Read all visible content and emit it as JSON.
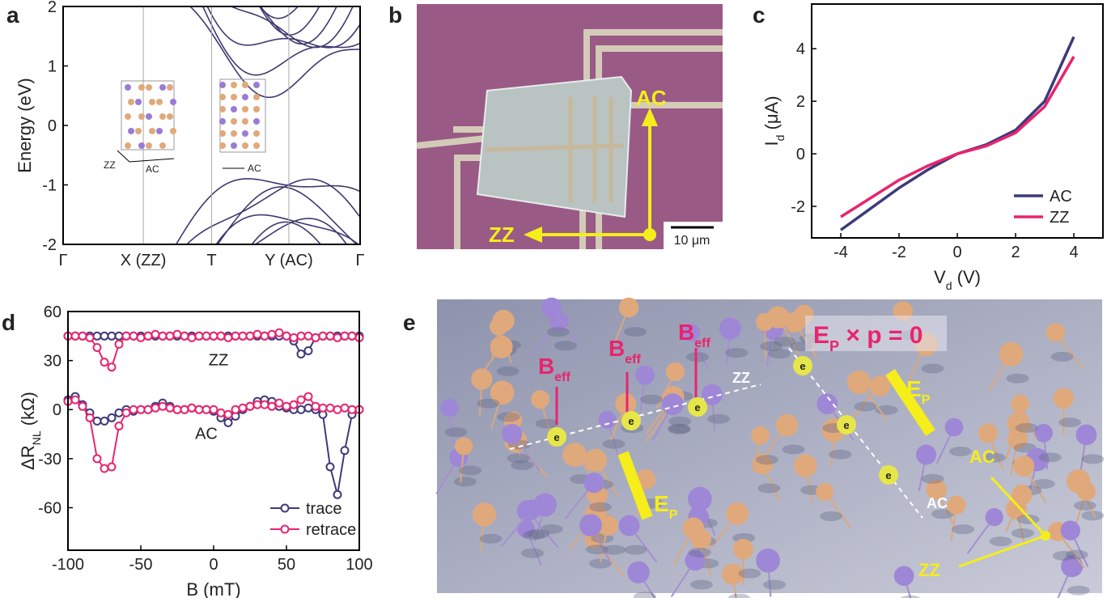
{
  "panel_labels": [
    "a",
    "b",
    "c",
    "d",
    "e"
  ],
  "chart_data": [
    {
      "type": "band",
      "ylabel": "Energy (eV)",
      "ylim": [
        -2,
        2
      ],
      "yticks": [
        -2,
        -1,
        0,
        1,
        2
      ],
      "categories": [
        "Γ",
        "X (ZZ)",
        "T",
        "Y (AC)",
        "Γ"
      ],
      "inset_labels": [
        "ZZ",
        "AC",
        "AC"
      ],
      "color": "#3d3a6e"
    },
    {
      "type": "line",
      "xlabel": {
        "text": "V",
        "sub": "d",
        "after": " (V)"
      },
      "ylabel": {
        "text": "I",
        "sub": "d",
        "after": " (μA)"
      },
      "xlim": [
        -5,
        5
      ],
      "xticks": [
        -4,
        -2,
        0,
        2,
        4
      ],
      "ylim": [
        -3.2,
        5.7
      ],
      "yticks": [
        -2,
        0,
        2,
        4
      ],
      "legend": "bottom-right",
      "markers": false,
      "x": [
        -4,
        -3,
        -2,
        -1,
        0,
        1,
        2,
        3,
        4
      ],
      "series": [
        {
          "name": "AC",
          "color": "#3d3a7a",
          "values": [
            -2.9,
            -2.1,
            -1.3,
            -0.6,
            0,
            0.35,
            0.9,
            2.0,
            4.45
          ]
        },
        {
          "name": "ZZ",
          "color": "#e8246e",
          "values": [
            -2.4,
            -1.7,
            -1.0,
            -0.45,
            0,
            0.3,
            0.8,
            1.8,
            3.7
          ]
        }
      ]
    },
    {
      "type": "line",
      "xlabel": {
        "text": "B (mT)",
        "sub": "",
        "after": ""
      },
      "ylabel": {
        "text": "ΔR",
        "sub": "NL",
        "after": " (kΩ)"
      },
      "xlim": [
        -100,
        100
      ],
      "xticks": [
        -100,
        -50,
        0,
        50,
        100
      ],
      "ylim": [
        -86,
        60
      ],
      "yticks": [
        -60,
        -30,
        0,
        30,
        60
      ],
      "legend": "bottom-right",
      "markers": true,
      "annotations": [
        "ZZ",
        "AC"
      ],
      "x": [
        -100,
        -95,
        -90,
        -85,
        -80,
        -75,
        -70,
        -65,
        -60,
        -55,
        -50,
        -45,
        -40,
        -35,
        -30,
        -25,
        -20,
        -15,
        -10,
        -5,
        0,
        5,
        10,
        15,
        20,
        25,
        30,
        35,
        40,
        45,
        50,
        55,
        60,
        65,
        70,
        75,
        80,
        85,
        90,
        95,
        100
      ],
      "series": [
        {
          "name": "trace",
          "color": "#3d3a7a",
          "branches": [
            [
              45,
              45,
              45,
              45,
              45,
              45,
              45,
              45,
              45,
              45,
              45,
              45,
              45,
              45,
              45,
              45,
              45,
              45,
              45,
              45,
              45,
              45,
              45,
              45,
              45,
              45,
              45,
              45,
              45,
              45,
              45,
              42,
              34,
              36,
              44,
              45,
              45,
              45,
              45,
              45,
              45
            ],
            [
              6,
              8,
              3,
              -2,
              -7,
              -7,
              -5,
              -2,
              0,
              -1,
              0,
              0,
              2,
              4,
              2,
              0,
              0,
              1,
              0,
              0,
              -1,
              -5,
              -8,
              -4,
              0,
              2,
              5,
              6,
              5,
              2,
              1,
              0,
              0,
              1,
              0,
              -3,
              -35,
              -52,
              -25,
              -3,
              0
            ]
          ]
        },
        {
          "name": "retrace",
          "color": "#e8246e",
          "branches": [
            [
              45,
              45,
              45,
              44,
              38,
              29,
              26,
              40,
              45,
              45,
              44,
              45,
              46,
              45,
              45,
              46,
              45,
              44,
              45,
              45,
              45,
              45,
              44,
              45,
              45,
              45,
              46,
              45,
              46,
              47,
              45,
              44,
              45,
              45,
              44,
              45,
              45,
              44,
              45,
              45,
              44
            ],
            [
              5,
              6,
              2,
              -5,
              -30,
              -36,
              -35,
              -10,
              -2,
              0,
              0,
              0,
              1,
              2,
              1,
              0,
              0,
              1,
              0,
              0,
              0,
              -2,
              -3,
              0,
              1,
              2,
              3,
              3,
              2,
              4,
              2,
              3,
              6,
              8,
              2,
              1,
              1,
              0,
              1,
              0,
              0
            ]
          ]
        }
      ]
    }
  ],
  "image_b": {
    "labels": [
      "AC",
      "ZZ"
    ],
    "scale_bar": "10 μm"
  },
  "illustration_e": {
    "equation": {
      "text": "E",
      "sub": "P",
      "after": " × p = 0"
    },
    "b_eff": [
      {
        "text": "B",
        "sub": "eff"
      },
      {
        "text": "B",
        "sub": "eff"
      },
      {
        "text": "B",
        "sub": "eff"
      }
    ],
    "e_p": [
      {
        "text": "E",
        "sub": "P"
      },
      {
        "text": "E",
        "sub": "P"
      }
    ],
    "electrons": [
      "e",
      "e",
      "e",
      "e",
      "e",
      "e"
    ],
    "direction_labels": [
      "ZZ",
      "AC"
    ],
    "axes": [
      "AC",
      "ZZ"
    ]
  }
}
